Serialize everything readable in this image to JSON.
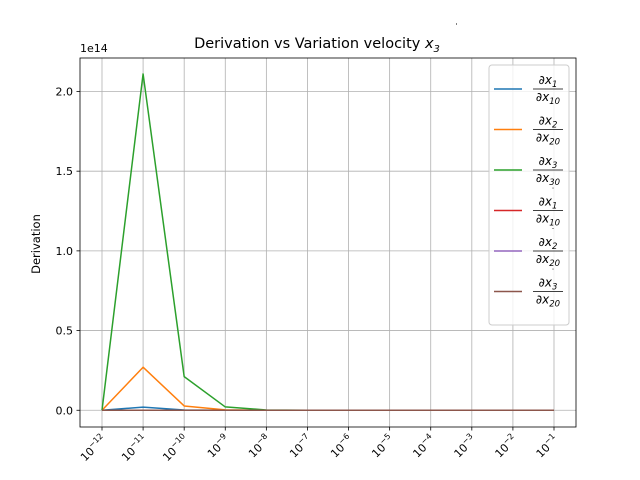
{
  "chart_data": {
    "type": "line",
    "title": "Derivation vs Variation velocity ",
    "title_sym": "x",
    "title_sub": "3",
    "ylabel": "Derivation",
    "xlabel": "",
    "offset_label": "1e14",
    "x_scale": "log",
    "x": [
      1e-12,
      1e-11,
      1e-10,
      1e-09,
      1e-08,
      1e-07,
      1e-06,
      1e-05,
      0.0001,
      0.001,
      0.01,
      0.1
    ],
    "x_tick_labels": [
      {
        "base": "10",
        "exp": "−12"
      },
      {
        "base": "10",
        "exp": "−11"
      },
      {
        "base": "10",
        "exp": "−10"
      },
      {
        "base": "10",
        "exp": "−9"
      },
      {
        "base": "10",
        "exp": "−8"
      },
      {
        "base": "10",
        "exp": "−7"
      },
      {
        "base": "10",
        "exp": "−6"
      },
      {
        "base": "10",
        "exp": "−5"
      },
      {
        "base": "10",
        "exp": "−4"
      },
      {
        "base": "10",
        "exp": "−3"
      },
      {
        "base": "10",
        "exp": "−2"
      },
      {
        "base": "10",
        "exp": "−1"
      }
    ],
    "y_ticks": [
      0,
      0.5,
      1.0,
      1.5,
      2.0
    ],
    "y_tick_labels": [
      "0.0",
      "0.5",
      "1.0",
      "1.5",
      "2.0"
    ],
    "ylim": [
      -0.105,
      2.21
    ],
    "y_unit_multiplier": "1e14",
    "grid": true,
    "legend_position": "upper right",
    "series": [
      {
        "legend": {
          "num_sym": "x",
          "num_sub": "1",
          "den_sym": "x",
          "den_sub": "10",
          "dot": false
        },
        "color": "#1f77b4",
        "values": [
          0,
          0.02,
          0.002,
          0.0002,
          2e-05,
          0,
          0,
          0,
          0,
          0,
          0,
          0
        ]
      },
      {
        "legend": {
          "num_sym": "x",
          "num_sub": "2",
          "den_sym": "x",
          "den_sub": "20",
          "dot": false
        },
        "color": "#ff7f0e",
        "values": [
          0,
          0.27,
          0.027,
          0.0027,
          0.0003,
          0,
          0,
          0,
          0,
          0,
          0,
          0
        ]
      },
      {
        "legend": {
          "num_sym": "x",
          "num_sub": "3",
          "den_sym": "x",
          "den_sub": "30",
          "dot": false
        },
        "color": "#2ca02c",
        "values": [
          0,
          2.11,
          0.211,
          0.021,
          0.002,
          0.0002,
          0,
          0,
          0,
          0,
          0,
          0
        ]
      },
      {
        "legend": {
          "num_sym": "x",
          "num_sub": "1",
          "den_sym": "x",
          "den_sub": "10",
          "dot": true
        },
        "color": "#d62728",
        "values": [
          0,
          0,
          0,
          0,
          0,
          0,
          0,
          0,
          0,
          0,
          0,
          0
        ]
      },
      {
        "legend": {
          "num_sym": "x",
          "num_sub": "2",
          "den_sym": "x",
          "den_sub": "20",
          "dot": true
        },
        "color": "#9467bd",
        "values": [
          0,
          0,
          0,
          0,
          0,
          0,
          0,
          0,
          0,
          0,
          0,
          0
        ]
      },
      {
        "legend": {
          "num_sym": "x",
          "num_sub": "3",
          "den_sym": "x",
          "den_sub": "20",
          "dot": true
        },
        "color": "#8c564b",
        "values": [
          0,
          0,
          0,
          0,
          0,
          0,
          0,
          0,
          0,
          0,
          0,
          0
        ]
      }
    ]
  }
}
